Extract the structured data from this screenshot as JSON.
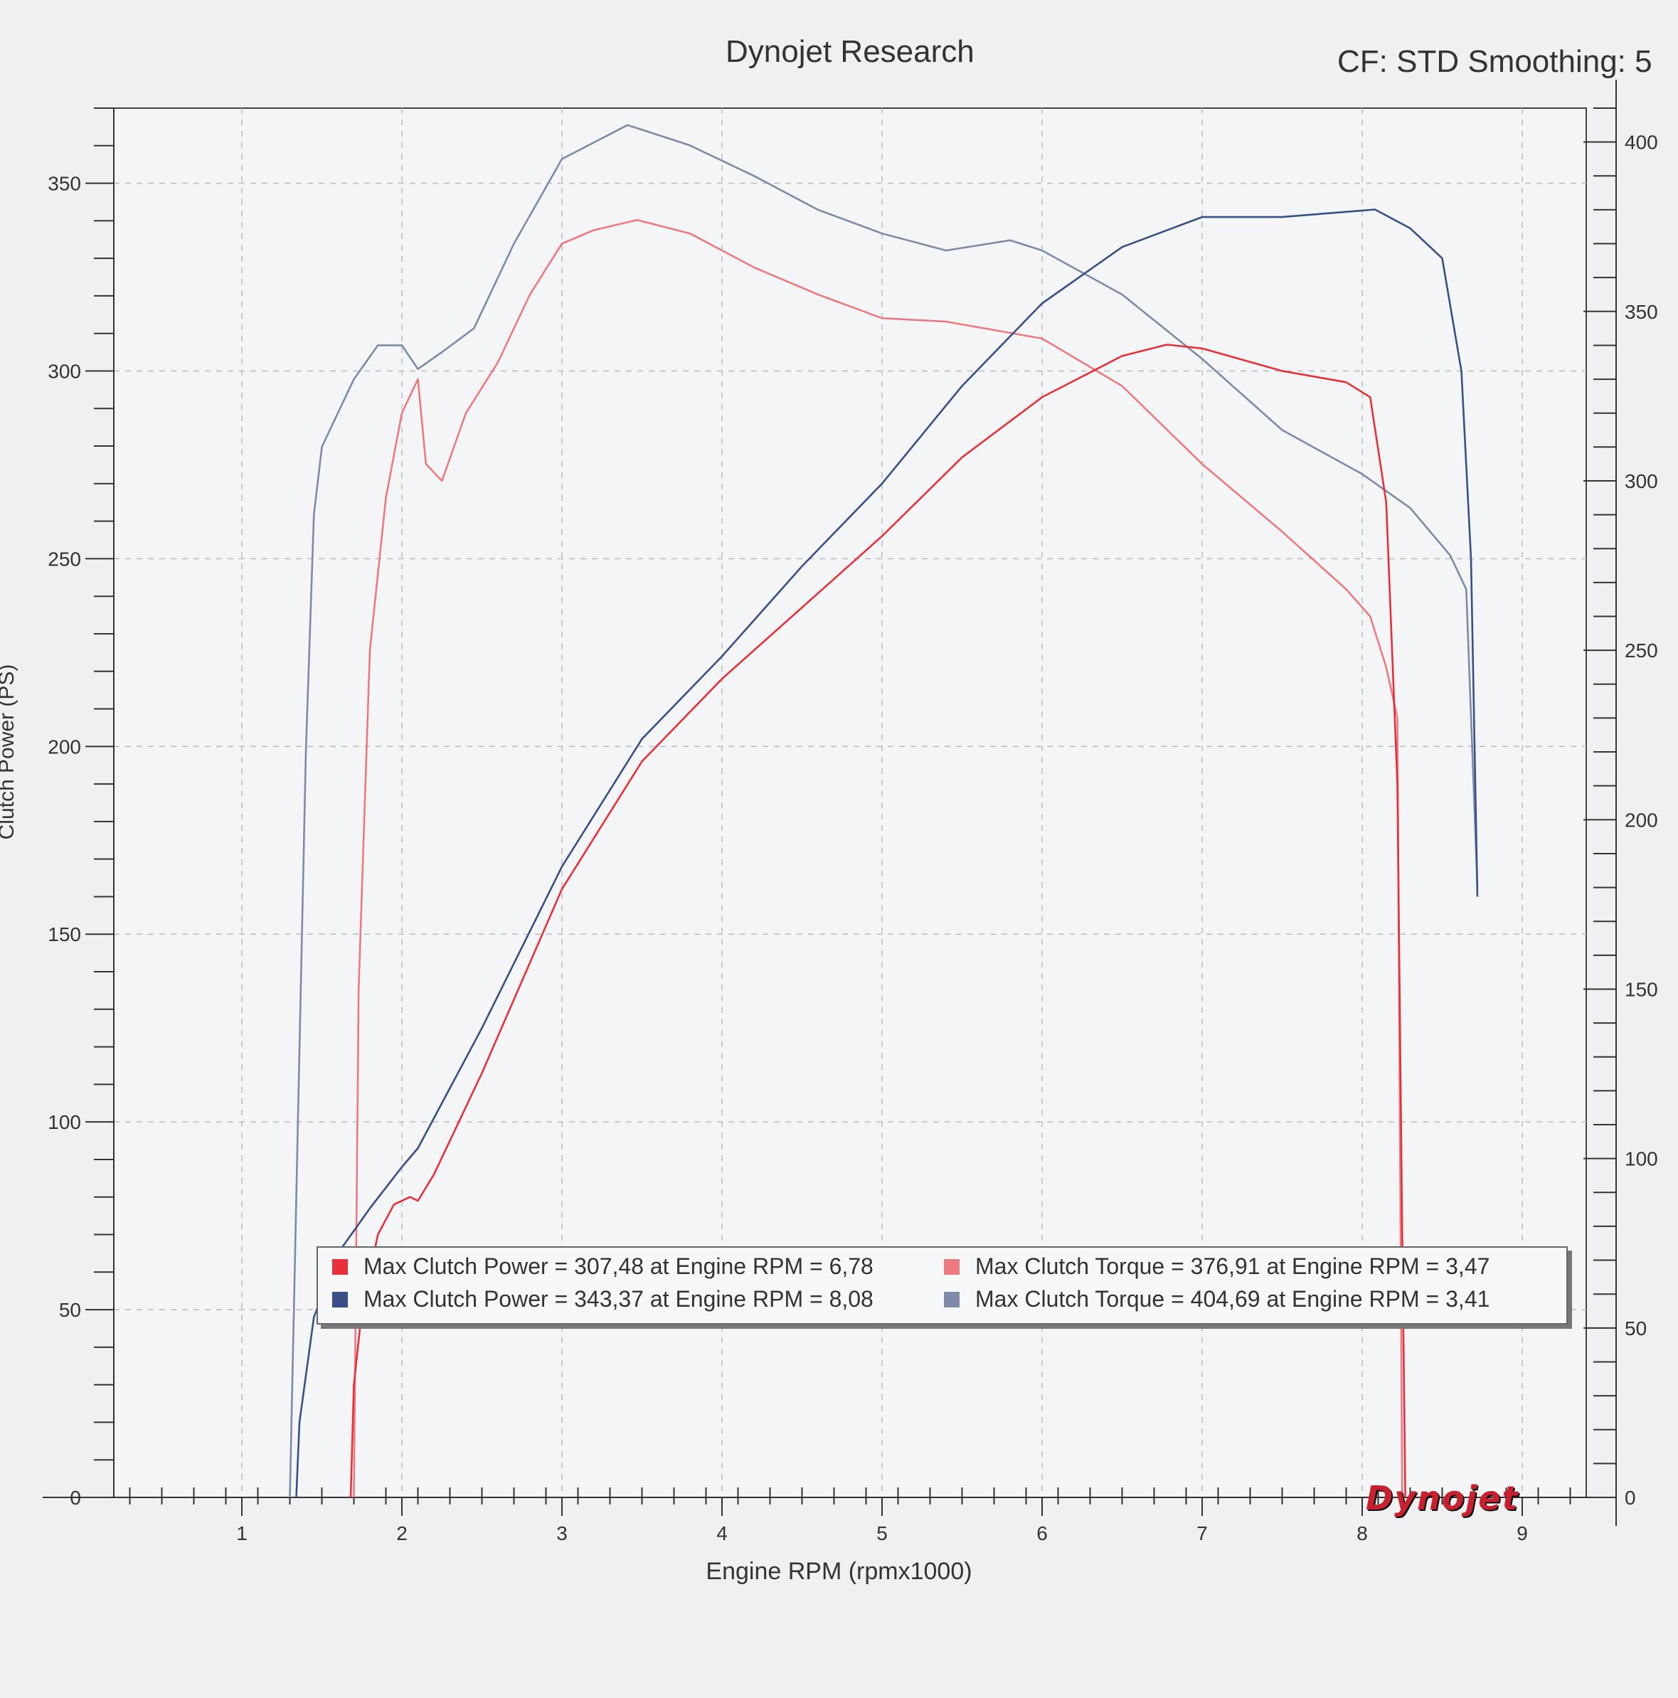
{
  "header": {
    "title": "Dynojet Research",
    "correction": "CF: STD Smoothing: 5"
  },
  "logo_text": "Dynojet",
  "chart_data": {
    "type": "line",
    "xlabel": "Engine RPM (rpmx1000)",
    "ylabel_left": "Clutch Power (PS)",
    "ylabel_right": "",
    "xlim": [
      0.2,
      9.4
    ],
    "ylim_left": [
      0,
      370
    ],
    "ylim_right": [
      0,
      410
    ],
    "x_ticks": [
      "1",
      "2",
      "3",
      "4",
      "5",
      "6",
      "7",
      "8",
      "9"
    ],
    "y_ticks_left": [
      "0",
      "50",
      "100",
      "150",
      "200",
      "250",
      "300",
      "350"
    ],
    "y_ticks_right": [
      "0",
      "50",
      "100",
      "150",
      "200",
      "250",
      "300",
      "350",
      "400"
    ],
    "grid": true,
    "colors": {
      "red_power": "#e8303a",
      "blue_power": "#3a4f86",
      "red_torque": "#ec7a80",
      "blue_torque": "#7f8aa6"
    },
    "series": [
      {
        "name": "Max Clutch Power = 307,48 at Engine RPM = 6,78",
        "axis": "left",
        "color_key": "red_power",
        "x": [
          1.68,
          1.7,
          1.75,
          1.85,
          1.95,
          2.05,
          2.1,
          2.2,
          2.5,
          3.0,
          3.5,
          4.0,
          4.5,
          5.0,
          5.5,
          6.0,
          6.5,
          6.78,
          7.0,
          7.5,
          7.9,
          8.05,
          8.15,
          8.22,
          8.25,
          8.27
        ],
        "y": [
          0,
          30,
          50,
          70,
          78,
          80,
          79,
          86,
          113,
          162,
          196,
          218,
          237,
          256,
          277,
          293,
          304,
          307,
          306,
          300,
          297,
          293,
          265,
          190,
          70,
          0
        ]
      },
      {
        "name": "Max Clutch Power = 343,37 at Engine RPM = 8,08",
        "axis": "left",
        "color_key": "blue_power",
        "x": [
          1.34,
          1.36,
          1.45,
          1.6,
          1.8,
          2.0,
          2.1,
          2.5,
          3.0,
          3.5,
          4.0,
          4.5,
          5.0,
          5.5,
          6.0,
          6.5,
          7.0,
          7.5,
          8.08,
          8.3,
          8.5,
          8.62,
          8.68,
          8.72
        ],
        "y": [
          0,
          20,
          48,
          65,
          77,
          88,
          93,
          125,
          168,
          202,
          224,
          248,
          270,
          296,
          318,
          333,
          341,
          341,
          343,
          338,
          330,
          300,
          250,
          160
        ]
      },
      {
        "name": "Max Clutch Torque = 376,91 at Engine RPM = 3,47",
        "axis": "right",
        "color_key": "red_torque",
        "x": [
          1.7,
          1.73,
          1.8,
          1.9,
          2.0,
          2.1,
          2.15,
          2.25,
          2.4,
          2.6,
          2.8,
          3.0,
          3.2,
          3.47,
          3.8,
          4.2,
          4.6,
          5.0,
          5.4,
          6.0,
          6.5,
          7.0,
          7.5,
          7.9,
          8.05,
          8.15,
          8.22,
          8.25
        ],
        "y": [
          0,
          150,
          250,
          295,
          320,
          330,
          305,
          300,
          320,
          335,
          355,
          370,
          374,
          377,
          373,
          363,
          355,
          348,
          347,
          342,
          328,
          305,
          285,
          268,
          260,
          245,
          230,
          0
        ]
      },
      {
        "name": "Max Clutch Torque = 404,69 at Engine RPM = 3,41",
        "axis": "right",
        "color_key": "blue_torque",
        "x": [
          1.3,
          1.4,
          1.45,
          1.5,
          1.55,
          1.7,
          1.85,
          2.0,
          2.1,
          2.25,
          2.45,
          2.7,
          3.0,
          3.41,
          3.8,
          4.2,
          4.6,
          5.0,
          5.4,
          5.8,
          6.0,
          6.5,
          7.0,
          7.5,
          8.0,
          8.3,
          8.55,
          8.65,
          8.72
        ],
        "y": [
          0,
          220,
          290,
          310,
          315,
          330,
          340,
          340,
          333,
          338,
          345,
          370,
          395,
          405,
          399,
          390,
          380,
          373,
          368,
          371,
          368,
          355,
          336,
          315,
          302,
          292,
          278,
          268,
          180
        ]
      }
    ]
  }
}
